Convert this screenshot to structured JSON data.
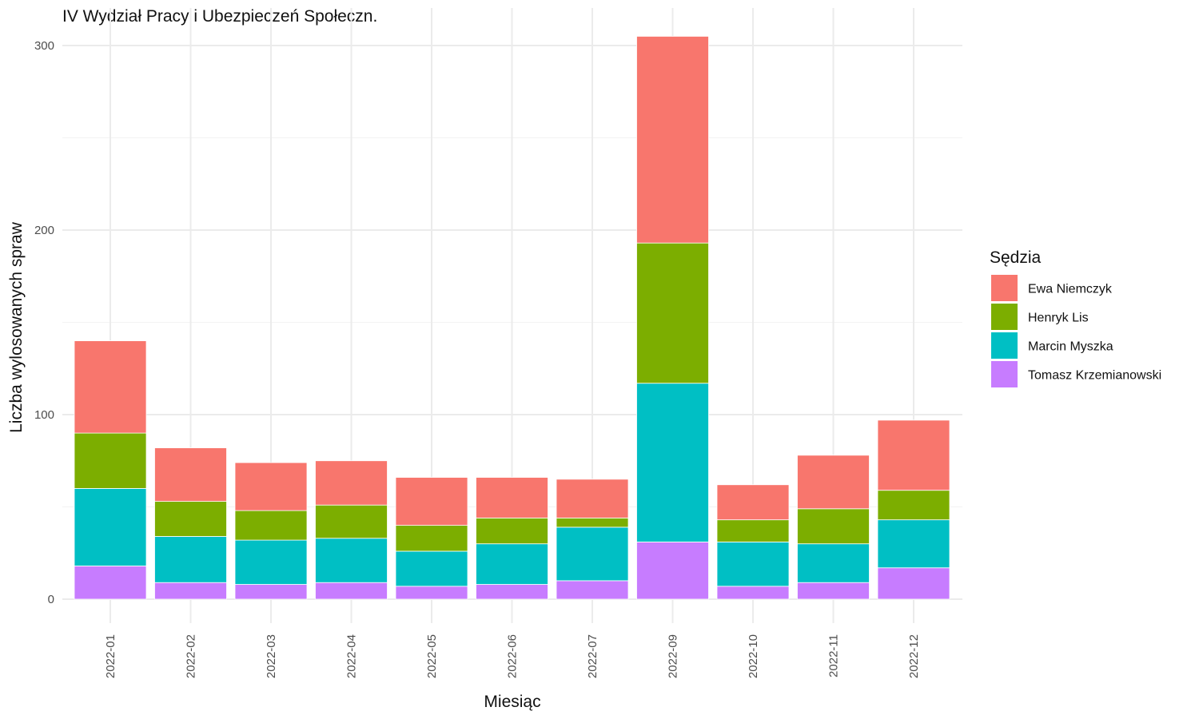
{
  "chart_data": {
    "type": "bar",
    "stacked": true,
    "title": "IV Wydział Pracy i Ubezpieczeń Społeczn.",
    "xlabel": "Miesiąc",
    "ylabel": "Liczba wylosowanych spraw",
    "ylim": [
      0,
      305
    ],
    "yticks": [
      0,
      100,
      200,
      300
    ],
    "grid": true,
    "legend_title": "Sędzia",
    "legend_position": "right",
    "categories": [
      "2022-01",
      "2022-02",
      "2022-03",
      "2022-04",
      "2022-05",
      "2022-06",
      "2022-07",
      "2022-09",
      "2022-10",
      "2022-11",
      "2022-12"
    ],
    "series": [
      {
        "name": "Tomasz Krzemianowski",
        "color": "#C77CFF",
        "values": [
          18,
          9,
          8,
          9,
          7,
          8,
          10,
          31,
          7,
          9,
          17
        ]
      },
      {
        "name": "Marcin Myszka",
        "color": "#00BFC4",
        "values": [
          42,
          25,
          24,
          24,
          19,
          22,
          29,
          86,
          24,
          21,
          26
        ]
      },
      {
        "name": "Henryk Lis",
        "color": "#7CAE00",
        "values": [
          30,
          19,
          16,
          18,
          14,
          14,
          5,
          76,
          12,
          19,
          16
        ]
      },
      {
        "name": "Ewa Niemczyk",
        "color": "#F8766D",
        "values": [
          50,
          29,
          26,
          24,
          26,
          22,
          21,
          112,
          19,
          29,
          38
        ]
      }
    ],
    "legend_order": [
      "Ewa Niemczyk",
      "Henryk Lis",
      "Marcin Myszka",
      "Tomasz Krzemianowski"
    ]
  }
}
